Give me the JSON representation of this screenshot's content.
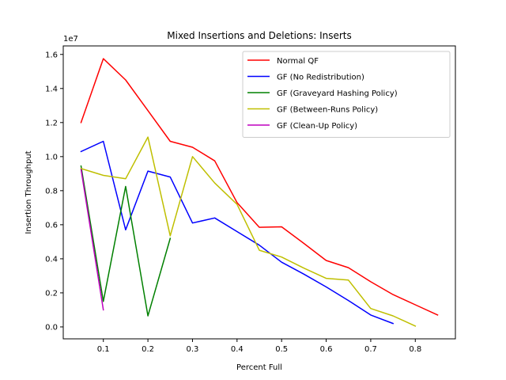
{
  "chart_data": {
    "type": "line",
    "title": "Mixed Insertions and Deletions: Inserts",
    "xlabel": "Percent Full",
    "ylabel": "Insertion Throughput",
    "y_scale_label": "1e7",
    "xlim": [
      0.01,
      0.89
    ],
    "ylim": [
      -0.07,
      1.65
    ],
    "xticks": [
      0.1,
      0.2,
      0.3,
      0.4,
      0.5,
      0.6,
      0.7,
      0.8
    ],
    "xtick_labels": [
      "0.1",
      "0.2",
      "0.3",
      "0.4",
      "0.5",
      "0.6",
      "0.7",
      "0.8"
    ],
    "yticks": [
      0.0,
      0.2,
      0.4,
      0.6,
      0.8,
      1.0,
      1.2,
      1.4,
      1.6
    ],
    "ytick_labels": [
      "0.0",
      "0.2",
      "0.4",
      "0.6",
      "0.8",
      "1.0",
      "1.2",
      "1.4",
      "1.6"
    ],
    "grid": false,
    "legend_position": "top-right",
    "series": [
      {
        "name": "Normal QF",
        "color": "#ff0000",
        "x": [
          0.05,
          0.1,
          0.15,
          0.2,
          0.25,
          0.3,
          0.35,
          0.4,
          0.45,
          0.5,
          0.55,
          0.6,
          0.65,
          0.7,
          0.75,
          0.8,
          0.85
        ],
        "y": [
          1.2,
          1.575,
          1.45,
          1.27,
          1.09,
          1.055,
          0.975,
          0.73,
          0.585,
          0.588,
          0.49,
          0.39,
          0.348,
          0.265,
          0.19,
          0.13,
          0.07
        ]
      },
      {
        "name": "GF (No Redistribution)",
        "color": "#0000ff",
        "x": [
          0.05,
          0.1,
          0.15,
          0.2,
          0.25,
          0.3,
          0.35,
          0.4,
          0.45,
          0.5,
          0.55,
          0.6,
          0.65,
          0.7,
          0.75
        ],
        "y": [
          1.03,
          1.09,
          0.57,
          0.915,
          0.88,
          0.61,
          0.64,
          0.56,
          0.48,
          0.38,
          0.31,
          0.235,
          0.155,
          0.07,
          0.02
        ]
      },
      {
        "name": "GF (Graveyard Hashing Policy)",
        "color": "#008000",
        "x": [
          0.05,
          0.1,
          0.15,
          0.2,
          0.25
        ],
        "y": [
          0.945,
          0.15,
          0.825,
          0.065,
          0.52
        ]
      },
      {
        "name": "GF (Between-Runs Policy)",
        "color": "#bfbf00",
        "x": [
          0.05,
          0.1,
          0.15,
          0.2,
          0.25,
          0.3,
          0.35,
          0.4,
          0.45,
          0.5,
          0.55,
          0.6,
          0.65,
          0.7,
          0.75,
          0.8
        ],
        "y": [
          0.93,
          0.89,
          0.87,
          1.115,
          0.535,
          1.0,
          0.845,
          0.72,
          0.45,
          0.41,
          0.345,
          0.285,
          0.275,
          0.108,
          0.065,
          0.005
        ]
      },
      {
        "name": "GF (Clean-Up Policy)",
        "color": "#bf00bf",
        "x": [
          0.05,
          0.1
        ],
        "y": [
          0.925,
          0.1
        ]
      }
    ]
  }
}
